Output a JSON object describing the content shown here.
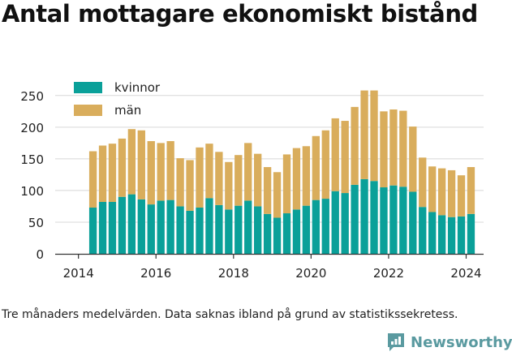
{
  "title": "Antal mottagare ekonomiskt bistånd",
  "note": "Tre månaders medelvärden. Data saknas ibland på grund av statistikssekretess.",
  "brand": {
    "name": "Newsworthy"
  },
  "colors": {
    "kvinnor": "#0aa099",
    "man": "#d9ad5c",
    "axis": "#333333",
    "grid": "#d8d8d8",
    "brand": "#5a9aa0"
  },
  "chart_data": {
    "type": "bar",
    "stacked": true,
    "xlim": [
      2013.4,
      2024.45
    ],
    "ylim": [
      0,
      260
    ],
    "x_ticks": [
      2014,
      2016,
      2018,
      2020,
      2022,
      2024
    ],
    "y_ticks": [
      0,
      50,
      100,
      150,
      200,
      250
    ],
    "legend_position": "top-left",
    "grid": true,
    "x": [
      2014.375,
      2014.625,
      2014.875,
      2015.125,
      2015.375,
      2015.625,
      2015.875,
      2016.125,
      2016.375,
      2016.625,
      2016.875,
      2017.125,
      2017.375,
      2017.625,
      2017.875,
      2018.125,
      2018.375,
      2018.625,
      2018.875,
      2019.125,
      2019.375,
      2019.625,
      2019.875,
      2020.125,
      2020.375,
      2020.625,
      2020.875,
      2021.125,
      2021.375,
      2021.625,
      2021.875,
      2022.125,
      2022.375,
      2022.625,
      2022.875,
      2023.125,
      2023.375,
      2023.625,
      2023.875,
      2024.125
    ],
    "series": [
      {
        "name": "kvinnor",
        "values": [
          73,
          82,
          82,
          90,
          94,
          86,
          78,
          84,
          85,
          75,
          68,
          73,
          88,
          77,
          70,
          76,
          84,
          75,
          63,
          57,
          64,
          70,
          76,
          85,
          87,
          99,
          96,
          109,
          118,
          115,
          105,
          108,
          106,
          98,
          74,
          66,
          61,
          58,
          59,
          63
        ]
      },
      {
        "name": "män",
        "values": [
          89,
          89,
          92,
          92,
          103,
          109,
          100,
          91,
          93,
          76,
          80,
          95,
          86,
          84,
          75,
          80,
          91,
          83,
          74,
          72,
          93,
          97,
          94,
          101,
          108,
          115,
          114,
          123,
          140,
          143,
          120,
          120,
          120,
          103,
          78,
          72,
          74,
          74,
          65,
          74
        ]
      }
    ]
  }
}
